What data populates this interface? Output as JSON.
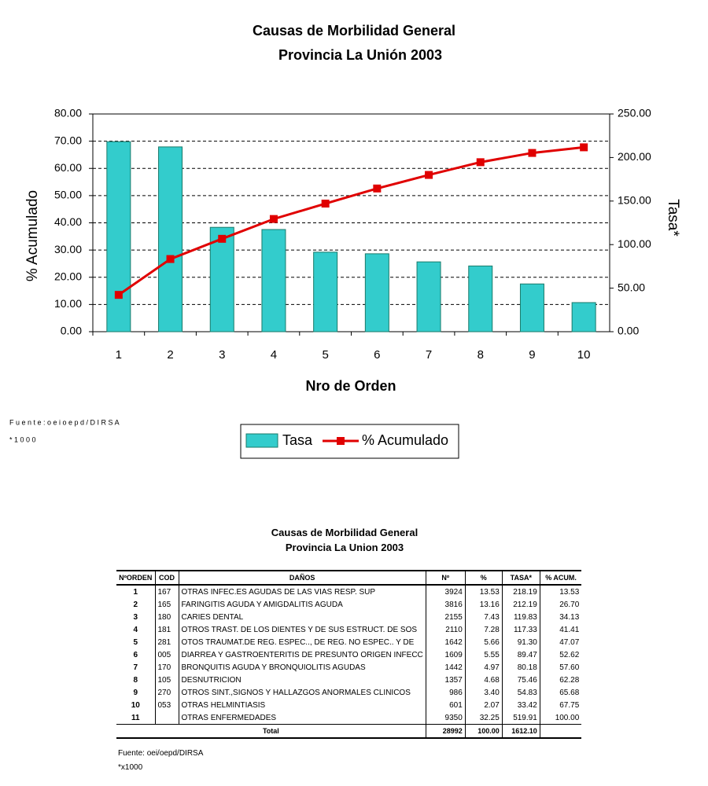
{
  "chart_data": {
    "type": "bar-line",
    "title": [
      "Causas de Morbilidad General",
      "Provincia La Unión 2003"
    ],
    "x_label": "Nro de Orden",
    "y_label": "% Acumulado",
    "y2_label": "Tasa*",
    "categories": [
      "1",
      "2",
      "3",
      "4",
      "5",
      "6",
      "7",
      "8",
      "9",
      "10"
    ],
    "series": [
      {
        "name": "Tasa",
        "type": "bar",
        "axis": "y2",
        "color": "#33CCCC",
        "values": [
          218.19,
          212.19,
          119.83,
          117.33,
          91.3,
          89.47,
          80.18,
          75.46,
          54.83,
          33.42
        ]
      },
      {
        "name": "% Acumulado",
        "type": "line",
        "axis": "y",
        "color": "#E00000",
        "values": [
          13.53,
          26.7,
          34.13,
          41.41,
          47.07,
          52.62,
          57.6,
          62.28,
          65.68,
          67.75
        ]
      }
    ],
    "ylim": [
      0,
      80
    ],
    "yticks": [
      {
        "value": 0,
        "label": "0.00"
      },
      {
        "value": 10,
        "label": "10.00"
      },
      {
        "value": 20,
        "label": "20.00"
      },
      {
        "value": 30,
        "label": "30.00"
      },
      {
        "value": 40,
        "label": "40.00"
      },
      {
        "value": 50,
        "label": "50.00"
      },
      {
        "value": 60,
        "label": "60.00"
      },
      {
        "value": 70,
        "label": "70.00"
      },
      {
        "value": 80,
        "label": "80.00"
      }
    ],
    "y2lim": [
      0,
      250
    ],
    "y2ticks": [
      {
        "value": 0,
        "label": "0.00"
      },
      {
        "value": 50,
        "label": "50.00"
      },
      {
        "value": 100,
        "label": "100.00"
      },
      {
        "value": 150,
        "label": "150.00"
      },
      {
        "value": 200,
        "label": "200.00"
      },
      {
        "value": 250,
        "label": "250.00"
      }
    ],
    "grid": true,
    "legend": "bottom",
    "notes": [
      "F u e n t e : o e i o e p d / D I R S A",
      "* 1 0 0 0"
    ]
  },
  "table": {
    "title": [
      "Causas de Morbilidad General",
      "Provincia La Union 2003"
    ],
    "columns": [
      "NºORDEN",
      "COD",
      "DAÑOS",
      "Nº",
      "%",
      "TASA*",
      "% ACUM."
    ],
    "rows": [
      [
        "1",
        "167",
        "OTRAS INFEC.ES AGUDAS DE LAS VIAS RESP. SUP",
        "3924",
        "13.53",
        "218.19",
        "13.53"
      ],
      [
        "2",
        "165",
        "FARINGITIS AGUDA Y AMIGDALITIS AGUDA",
        "3816",
        "13.16",
        "212.19",
        "26.70"
      ],
      [
        "3",
        "180",
        "CARIES DENTAL",
        "2155",
        "7.43",
        "119.83",
        "34.13"
      ],
      [
        "4",
        "181",
        "OTROS TRAST. DE LOS DIENTES Y DE SUS ESTRUCT. DE SOS",
        "2110",
        "7.28",
        "117.33",
        "41.41"
      ],
      [
        "5",
        "281",
        "OTOS TRAUMAT.DE REG. ESPEC.., DE REG. NO ESPEC.. Y DE",
        "1642",
        "5.66",
        "91.30",
        "47.07"
      ],
      [
        "6",
        "005",
        "DIARREA Y GASTROENTERITIS DE PRESUNTO ORIGEN INFECC",
        "1609",
        "5.55",
        "89.47",
        "52.62"
      ],
      [
        "7",
        "170",
        "BRONQUITIS AGUDA Y BRONQUIOLITIS AGUDAS",
        "1442",
        "4.97",
        "80.18",
        "57.60"
      ],
      [
        "8",
        "105",
        "DESNUTRICION",
        "1357",
        "4.68",
        "75.46",
        "62.28"
      ],
      [
        "9",
        "270",
        "OTROS SINT.,SIGNOS Y HALLAZGOS ANORMALES CLINICOS",
        "986",
        "3.40",
        "54.83",
        "65.68"
      ],
      [
        "10",
        "053",
        "OTRAS HELMINTIASIS",
        "601",
        "2.07",
        "33.42",
        "67.75"
      ],
      [
        "11",
        null,
        "OTRAS ENFERMEDADES",
        "9350",
        "32.25",
        "519.91",
        "100.00"
      ]
    ],
    "total": {
      "label": "Total",
      "values": [
        "28992",
        "100.00",
        "1612.10"
      ]
    },
    "notes": [
      "Fuente: oei/oepd/DIRSA",
      "*x1000"
    ]
  }
}
